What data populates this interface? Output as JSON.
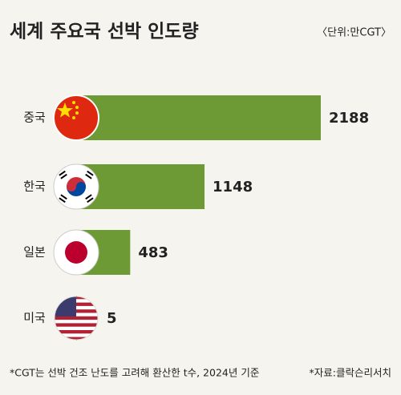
{
  "chart_data": {
    "type": "bar",
    "orientation": "horizontal",
    "title": "세계 주요국 선박 인도량",
    "unit_note": "〈단위:만CGT〉",
    "categories": [
      "중국",
      "한국",
      "일본",
      "미국"
    ],
    "values": [
      2188,
      1148,
      483,
      5
    ],
    "color": "#6e9a35",
    "footnote": "*CGT는 선박 건조 난도를 고려해 환산한 t수, 2024년 기준",
    "source": "*자료:클락슨리서치"
  }
}
